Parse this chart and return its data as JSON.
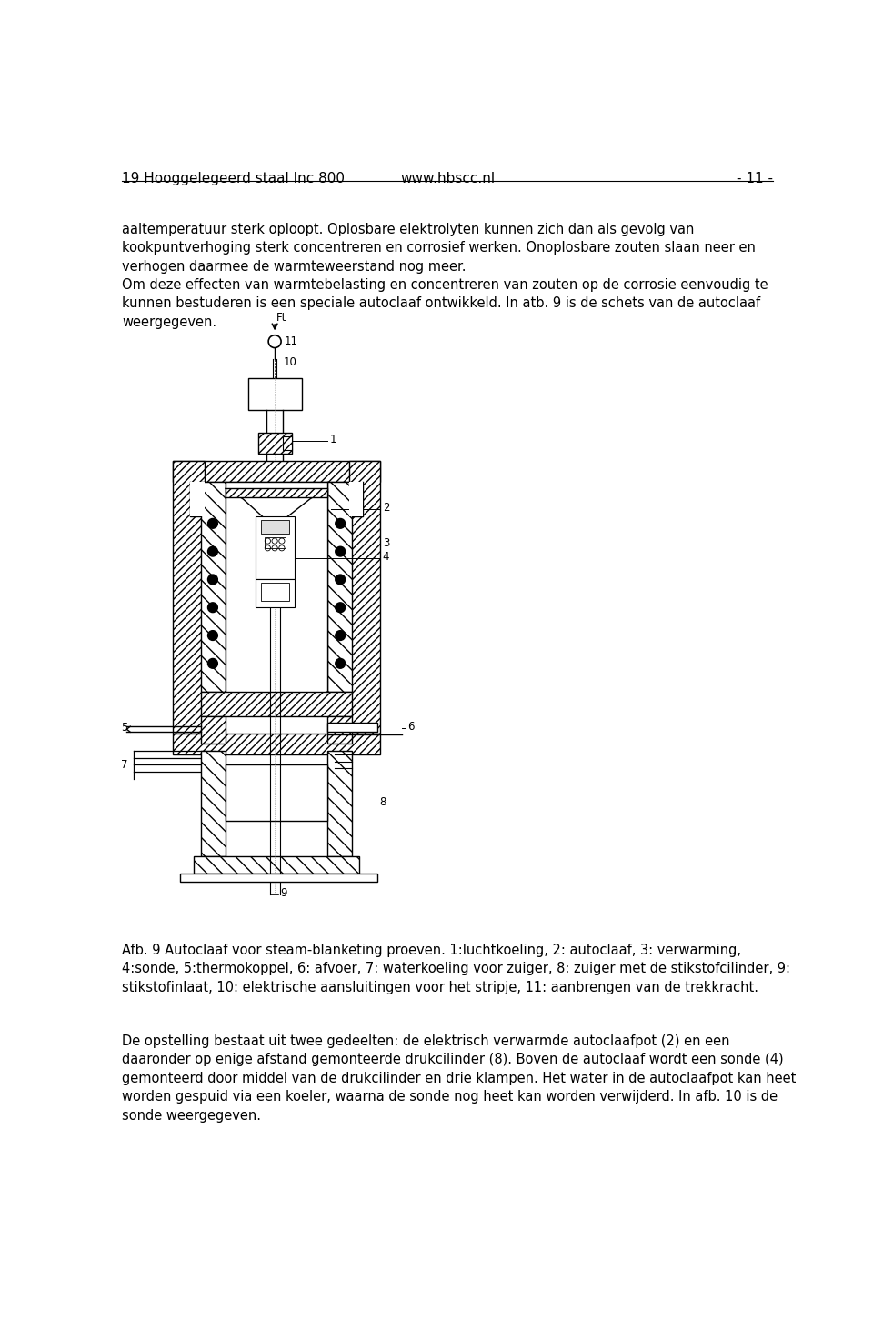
{
  "background_color": "#ffffff",
  "page_width": 9.6,
  "page_height": 14.62,
  "header_left": "19 Hooggelegeerd staal Inc 800",
  "header_center": "www.hbscc.nl",
  "header_right": "- 11 -",
  "header_fontsize": 11,
  "text_fontsize": 10.5,
  "text_color": "#000000",
  "paragraph1": "aaltemperatuur sterk oploopt. Oplosbare elektrolyten kunnen zich dan als gevolg van\nkookpuntverhoging sterk concentreren en corrosief werken. Onoplosbare zouten slaan neer en\nverhogen daarmee de warmteweerstand nog meer.\nOm deze effecten van warmtebelasting en concentreren van zouten op de corrosie eenvoudig te\nkunnen bestuderen is een speciale autoclaaf ontwikkeld. In atb. 9 is de schets van de autoclaaf\nweergegeven.",
  "caption": "Afb. 9 Autoclaaf voor steam-blanketing proeven. 1:luchtkoeling, 2: autoclaaf, 3: verwarming,\n4:sonde, 5:thermokoppel, 6: afvoer, 7: waterkoeling voor zuiger, 8: zuiger met de stikstofcilinder, 9:\nstikstofinlaat, 10: elektrische aansluitingen voor het stripje, 11: aanbrengen van de trekkracht.",
  "paragraph2": "De opstelling bestaat uit twee gedeelten: de elektrisch verwarmde autoclaafpot (2) en een\ndaaronder op enige afstand gemonteerde drukcilinder (8). Boven de autoclaaf wordt een sonde (4)\ngemonteerd door middel van de drukcilinder en drie klampen. Het water in de autoclaafpot kan heet\nworden gespuid via een koeler, waarna de sonde nog heet kan worden verwijderd. In afb. 10 is de\nsonde weergegeven."
}
